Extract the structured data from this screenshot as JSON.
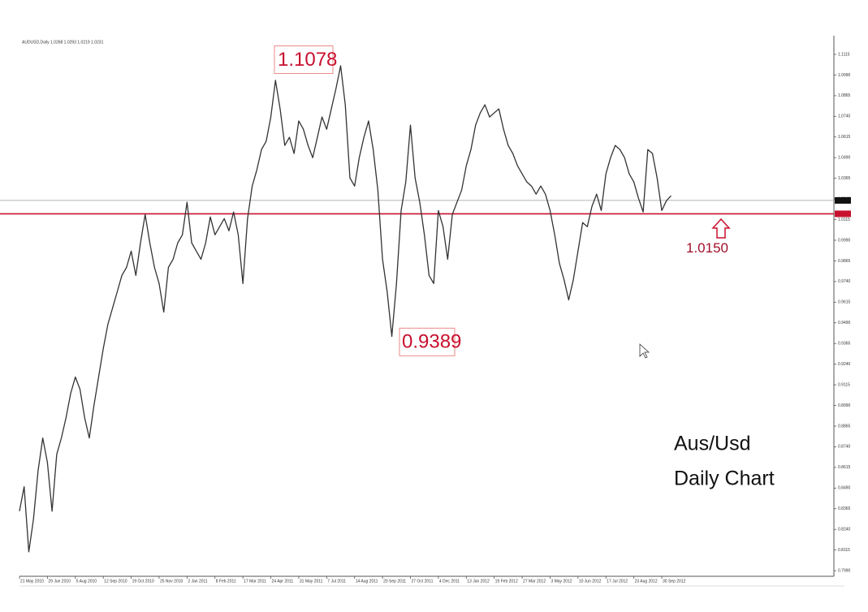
{
  "chart_data": {
    "type": "line",
    "title": "AUDUSD,Daily 1.0268 1.0293 1.0219 1.0231",
    "caption": [
      "Aus/Usd",
      "Daily Chart"
    ],
    "high_label": 1.1078,
    "low_label": 0.9389,
    "level": {
      "value": 1.015,
      "label": "1.0150",
      "color": "#c8102e"
    },
    "current_price": 1.0231,
    "color": "#333333",
    "categories": [
      "21 May 2010",
      null,
      null,
      null,
      null,
      null,
      "29 Jun 2010",
      null,
      null,
      null,
      null,
      null,
      "5 Aug 2010",
      null,
      null,
      null,
      null,
      null,
      "12 Sep 2010",
      null,
      null,
      null,
      null,
      null,
      "19 Oct 2010",
      null,
      null,
      null,
      null,
      null,
      "25 Nov 2010",
      null,
      null,
      null,
      null,
      null,
      "2 Jan 2011",
      null,
      null,
      null,
      null,
      null,
      "8 Feb 2011",
      null,
      null,
      null,
      null,
      null,
      "17 Mar 2011",
      null,
      null,
      null,
      null,
      null,
      "24 Apr 2011",
      null,
      null,
      null,
      null,
      null,
      "31 May 2011",
      null,
      null,
      null,
      null,
      null,
      "7 Jul 2011",
      null,
      null,
      null,
      null,
      null,
      "14 Aug 2011",
      null,
      null,
      null,
      null,
      null,
      "20 Sep 2011",
      null,
      null,
      null,
      null,
      null,
      "27 Oct 2011",
      null,
      null,
      null,
      null,
      null,
      "4 Dec 2011",
      null,
      null,
      null,
      null,
      null,
      "13 Jan 2012",
      null,
      null,
      null,
      null,
      null,
      "19 Feb 2012",
      null,
      null,
      null,
      null,
      null,
      "27 Mar 2012",
      null,
      null,
      null,
      null,
      null,
      "3 May 2012",
      null,
      null,
      null,
      null,
      null,
      "10 Jun 2012",
      null,
      null,
      null,
      null,
      null,
      "17 Jul 2012",
      null,
      null,
      null,
      null,
      null,
      "23 Aug 2012",
      null,
      null,
      null,
      null,
      null,
      "30 Sep 2012",
      null,
      null
    ],
    "values": [
      0.835,
      0.8498,
      0.8104,
      0.8301,
      0.8596,
      0.8793,
      0.8645,
      0.835,
      0.8694,
      0.8793,
      0.8916,
      0.9063,
      0.9162,
      0.9088,
      0.8916,
      0.8793,
      0.899,
      0.9162,
      0.9334,
      0.9482,
      0.958,
      0.9678,
      0.9777,
      0.9826,
      0.9924,
      0.9777,
      0.9974,
      1.0146,
      0.9974,
      0.9826,
      0.9728,
      0.9555,
      0.9826,
      0.9875,
      0.9974,
      1.0023,
      1.022,
      0.9974,
      0.9924,
      0.9875,
      0.9974,
      1.0131,
      1.0023,
      1.0072,
      1.0121,
      1.0047,
      1.0161,
      1.0023,
      0.9728,
      1.0121,
      1.0318,
      1.0416,
      1.0539,
      1.0589,
      1.0736,
      1.0958,
      1.0785,
      1.0564,
      1.0613,
      1.0515,
      1.0712,
      1.0662,
      1.0564,
      1.049,
      1.0613,
      1.0736,
      1.0662,
      1.0785,
      1.0908,
      1.1046,
      1.081,
      1.0367,
      1.0318,
      1.049,
      1.0613,
      1.0712,
      1.0539,
      1.0293,
      0.9875,
      0.9678,
      0.9408,
      0.9728,
      1.017,
      1.0343,
      1.0687,
      1.0367,
      1.022,
      1.0023,
      0.9777,
      0.9728,
      1.017,
      1.0072,
      0.9875,
      1.0146,
      1.022,
      1.0293,
      1.0441,
      1.0539,
      1.0687,
      1.0761,
      1.081,
      1.0736,
      1.0761,
      1.0785,
      1.0662,
      1.0564,
      1.0515,
      1.0441,
      1.0392,
      1.0343,
      1.0318,
      1.0269,
      1.0318,
      1.0269,
      1.017,
      1.0023,
      0.9851,
      0.9752,
      0.9629,
      0.9752,
      0.9924,
      1.0097,
      1.0072,
      1.0195,
      1.0269,
      1.017,
      1.0392,
      1.049,
      1.0564,
      1.0539,
      1.049,
      1.0392,
      1.0343,
      1.0244,
      1.0161,
      1.0539,
      1.0515,
      1.0367,
      1.017,
      1.0229,
      1.0259
    ],
    "ylim": [
      0.7956,
      1.1228
    ],
    "yticks": [
      1.1115,
      {
        "value": 1.099,
        "label": "1.0990"
      },
      1.0865,
      {
        "value": 1.074,
        "label": "1.0740"
      },
      1.0615,
      {
        "value": 1.049,
        "label": "1.0490"
      },
      1.0365,
      {
        "value": 1.024,
        "label": "1.0240"
      },
      1.0115,
      {
        "value": 0.999,
        "label": "0.9990"
      },
      0.9865,
      {
        "value": 0.974,
        "label": "0.9740"
      },
      0.9615,
      {
        "value": 0.949,
        "label": "0.9490"
      },
      0.9365,
      {
        "value": 0.924,
        "label": "0.9240"
      },
      0.9115,
      {
        "value": 0.899,
        "label": "0.8990"
      },
      0.8865,
      {
        "value": 0.874,
        "label": "0.8740"
      },
      0.8615,
      {
        "value": 0.849,
        "label": "0.8490"
      },
      0.8365,
      {
        "value": 0.824,
        "label": "0.8240"
      },
      0.8115,
      {
        "value": 0.799,
        "label": "0.7990"
      }
    ]
  }
}
